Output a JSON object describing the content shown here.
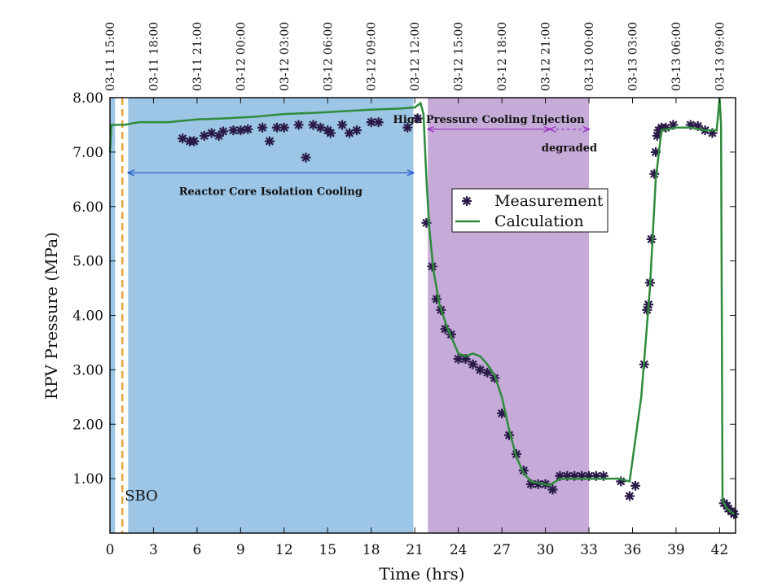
{
  "chart_data": {
    "type": "line",
    "xlabel": "Time (hrs)",
    "ylabel": "RPV Pressure (MPa)",
    "xlim": [
      0,
      43.1
    ],
    "ylim": [
      0,
      8
    ],
    "xticks": [
      0,
      3,
      6,
      9,
      12,
      15,
      18,
      21,
      24,
      27,
      30,
      33,
      36,
      39,
      42
    ],
    "yticks": [
      {
        "value": 1,
        "label": "1.00"
      },
      {
        "value": 2,
        "label": "2.00"
      },
      {
        "value": 3,
        "label": "3.00"
      },
      {
        "value": 4,
        "label": "4.00"
      },
      {
        "value": 5,
        "label": "5.00"
      },
      {
        "value": 6,
        "label": "6.00"
      },
      {
        "value": 7,
        "label": "7.00"
      },
      {
        "value": 8,
        "label": "8.00"
      }
    ],
    "x2ticks": [
      {
        "value": 0,
        "label": "03-11 15:00"
      },
      {
        "value": 3,
        "label": "03-11 18:00"
      },
      {
        "value": 6,
        "label": "03-11 21:00"
      },
      {
        "value": 9,
        "label": "03-12 00:00"
      },
      {
        "value": 12,
        "label": "03-12 03:00"
      },
      {
        "value": 15,
        "label": "03-12 06:00"
      },
      {
        "value": 18,
        "label": "03-12 09:00"
      },
      {
        "value": 21,
        "label": "03-12 12:00"
      },
      {
        "value": 24,
        "label": "03-12 15:00"
      },
      {
        "value": 27,
        "label": "03-12 18:00"
      },
      {
        "value": 30,
        "label": "03-12 21:00"
      },
      {
        "value": 33,
        "label": "03-13 00:00"
      },
      {
        "value": 36,
        "label": "03-13 03:00"
      },
      {
        "value": 39,
        "label": "03-13 06:00"
      },
      {
        "value": 42,
        "label": "03-13 09:00"
      }
    ],
    "legend": "upper center",
    "shaded_regions": [
      {
        "x": [
          0,
          0.35
        ],
        "color": "#9cc5e6"
      },
      {
        "x": [
          1.25,
          20.9
        ],
        "color": "#9cc5e6"
      },
      {
        "x": [
          21.9,
          33.0
        ],
        "color": "#c6abd8"
      }
    ],
    "vlines": [
      {
        "x": 0.85,
        "color": "#e8a33a",
        "style": "dashed",
        "text": "SBO",
        "text_color": "#b0a050"
      }
    ],
    "annotations": [
      {
        "text": "Reactor Core Isolation Cooling",
        "x": [
          1.25,
          20.9
        ],
        "y": 6.62,
        "color": "#2255cc",
        "style": "solid"
      },
      {
        "text": "High Pressure Cooling Injection",
        "x": [
          21.9,
          30.3
        ],
        "y": 7.42,
        "color": "#9a2ec8",
        "style": "solid"
      },
      {
        "text": "degraded",
        "x": [
          30.3,
          33.0
        ],
        "y": 7.42,
        "color": "#9a2ec8",
        "style": "dashed"
      }
    ],
    "series": [
      {
        "name": "Measurement",
        "color": "#2a1a48",
        "marker": "asterisk",
        "x": [
          5,
          5.5,
          5.8,
          6.5,
          7,
          7.5,
          7.8,
          8.5,
          9,
          9.5,
          10.5,
          11,
          11.5,
          12,
          13,
          13.5,
          14,
          14.5,
          15,
          15.2,
          16,
          16.5,
          17,
          18,
          18.5,
          20.5,
          21.2,
          21.8,
          22.2,
          22.5,
          22.8,
          23.1,
          23.5,
          24,
          24.5,
          25,
          25.5,
          26,
          26.5,
          27,
          27.5,
          28,
          28.5,
          29,
          29.5,
          30,
          30.5,
          31,
          31.5,
          32,
          32.5,
          33,
          33.5,
          34,
          35.2,
          35.8,
          36.2,
          36.8,
          37,
          37.1,
          37.2,
          37.3,
          37.5,
          37.6,
          37.7,
          37.8,
          38,
          38.3,
          38.8,
          40,
          40.5,
          41,
          41.5,
          42.3,
          42.5,
          42.6,
          42.8,
          43
        ],
        "values": [
          7.25,
          7.2,
          7.2,
          7.3,
          7.35,
          7.3,
          7.38,
          7.4,
          7.4,
          7.42,
          7.45,
          7.2,
          7.45,
          7.45,
          7.5,
          6.9,
          7.5,
          7.45,
          7.4,
          7.35,
          7.5,
          7.35,
          7.4,
          7.55,
          7.55,
          7.45,
          7.62,
          5.7,
          4.9,
          4.3,
          4.1,
          3.75,
          3.65,
          3.2,
          3.2,
          3.1,
          3.0,
          2.95,
          2.85,
          2.2,
          1.8,
          1.45,
          1.15,
          0.9,
          0.9,
          0.9,
          0.8,
          1.05,
          1.05,
          1.05,
          1.05,
          1.05,
          1.05,
          1.05,
          0.95,
          0.68,
          0.87,
          3.1,
          4.1,
          4.2,
          4.6,
          5.4,
          6.6,
          7.0,
          7.3,
          7.4,
          7.45,
          7.45,
          7.5,
          7.5,
          7.48,
          7.4,
          7.35,
          0.55,
          0.5,
          0.45,
          0.4,
          0.35
        ]
      },
      {
        "name": "Calculation",
        "color": "#2e8b3c",
        "marker": "none",
        "x": [
          0,
          0.1,
          1,
          2,
          4,
          6,
          8,
          10,
          12,
          14,
          16,
          18,
          20,
          21,
          21.4,
          21.6,
          21.8,
          22,
          22.3,
          22.7,
          23.2,
          24,
          24.5,
          25,
          25.5,
          26,
          26.5,
          27,
          27.5,
          28,
          28.5,
          29,
          29.5,
          30.3,
          31,
          33,
          35,
          35.8,
          36.6,
          37.2,
          37.6,
          38,
          39,
          40,
          41,
          41.8,
          42,
          42.1,
          42.2,
          42.5,
          43
        ],
        "values": [
          7.0,
          7.5,
          7.5,
          7.55,
          7.55,
          7.6,
          7.62,
          7.65,
          7.7,
          7.72,
          7.75,
          7.78,
          7.8,
          7.82,
          7.9,
          7.7,
          6.5,
          5.6,
          4.8,
          4.2,
          3.8,
          3.3,
          3.25,
          3.3,
          3.25,
          3.1,
          2.9,
          2.5,
          1.9,
          1.4,
          1.1,
          0.95,
          0.92,
          0.88,
          1.0,
          1.0,
          1.0,
          0.95,
          2.5,
          4.5,
          6.5,
          7.4,
          7.45,
          7.45,
          7.4,
          7.4,
          8.0,
          7.5,
          0.6,
          0.45,
          0.35
        ]
      }
    ]
  }
}
